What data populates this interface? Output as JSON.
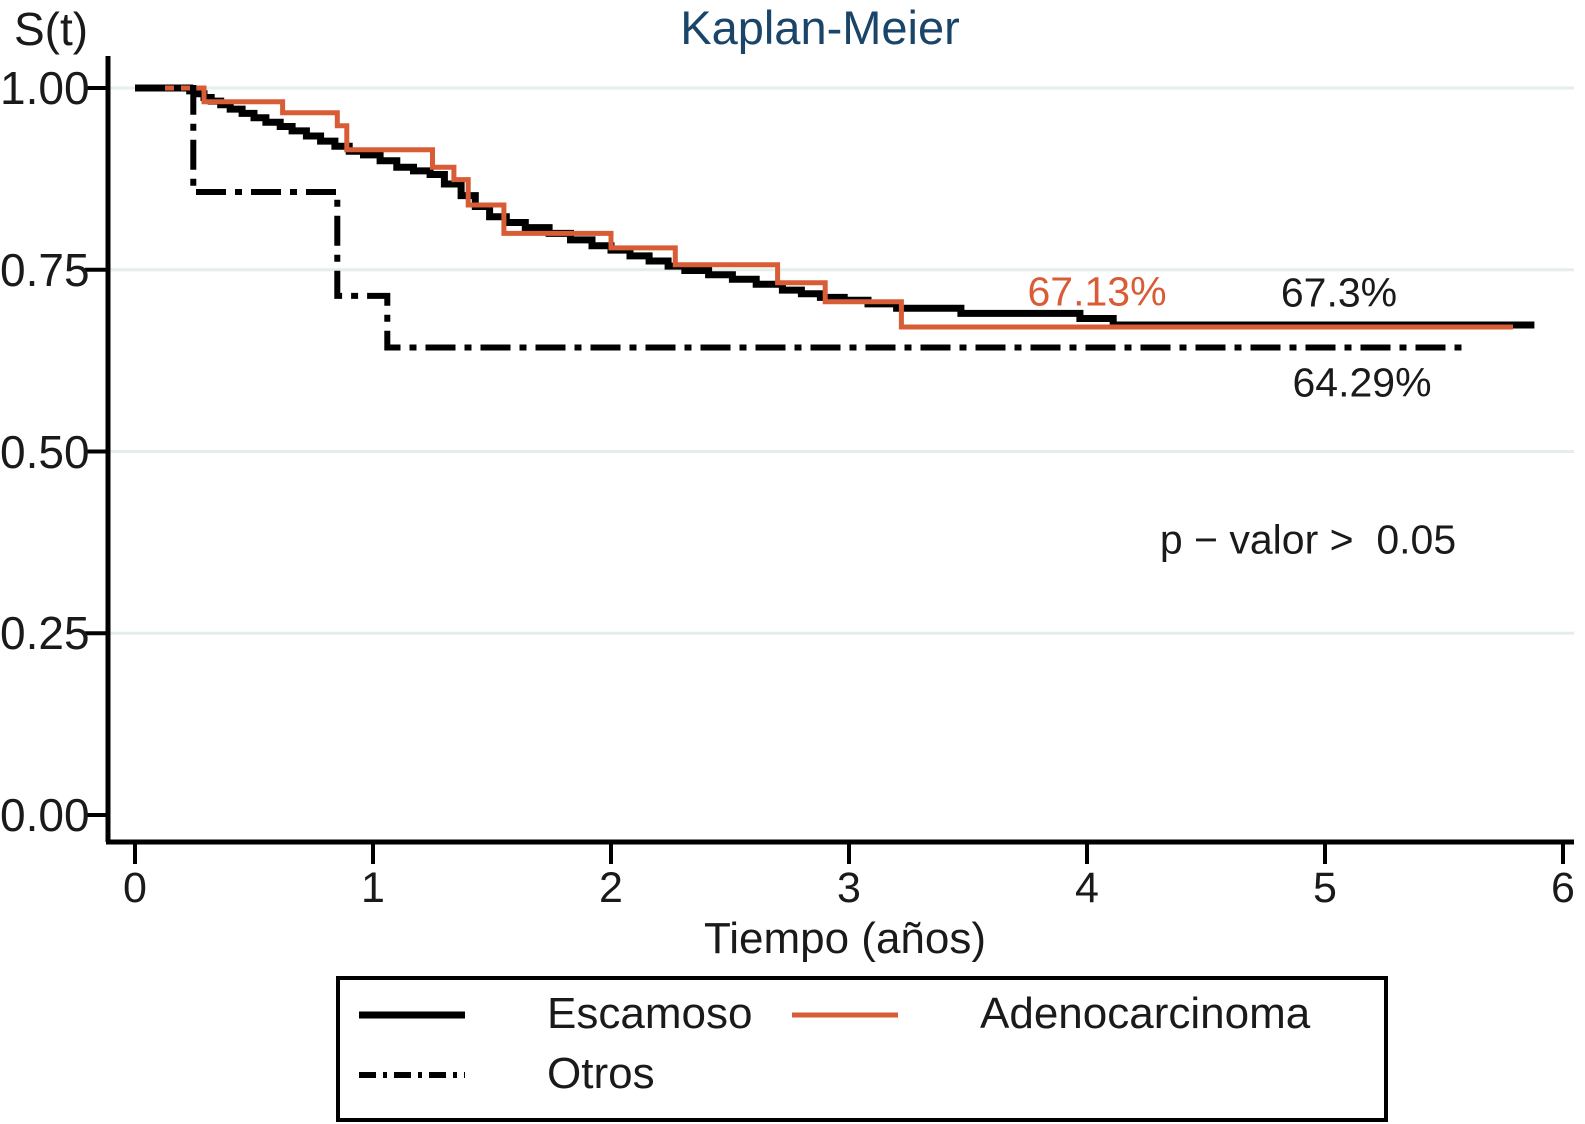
{
  "chart_data": {
    "type": "line",
    "step": true,
    "title": "Kaplan-Meier",
    "title_color": "#1A4569",
    "grid": true,
    "legend_position": "bottom",
    "x_axis": {
      "label": "Tiempo (años)",
      "range": [
        0,
        6
      ],
      "ticks": [
        {
          "v": 0,
          "label": "0"
        },
        {
          "v": 1,
          "label": "1"
        },
        {
          "v": 2,
          "label": "2"
        },
        {
          "v": 3,
          "label": "3"
        },
        {
          "v": 4,
          "label": "4"
        },
        {
          "v": 5,
          "label": "5"
        },
        {
          "v": 6,
          "label": "6"
        }
      ]
    },
    "y_axis": {
      "label": "S(t)",
      "range": [
        0,
        1
      ],
      "ticks": [
        {
          "v": 1.0,
          "label": "1.00"
        },
        {
          "v": 0.75,
          "label": "0.75"
        },
        {
          "v": 0.5,
          "label": "0.50"
        },
        {
          "v": 0.25,
          "label": "0.25"
        },
        {
          "v": 0.0,
          "label": "0.00"
        }
      ],
      "grid_values": [
        1.0,
        0.75,
        0.5,
        0.25
      ]
    },
    "series": [
      {
        "name": "Escamoso",
        "color": "#000000",
        "line_style": "solid",
        "width": 7,
        "dash": null,
        "points": [
          [
            0.0,
            1.0
          ],
          [
            0.23,
            0.996
          ],
          [
            0.26,
            0.992
          ],
          [
            0.29,
            0.987
          ],
          [
            0.32,
            0.982
          ],
          [
            0.36,
            0.977
          ],
          [
            0.4,
            0.971
          ],
          [
            0.45,
            0.965
          ],
          [
            0.5,
            0.959
          ],
          [
            0.55,
            0.953
          ],
          [
            0.61,
            0.947
          ],
          [
            0.66,
            0.941
          ],
          [
            0.72,
            0.934
          ],
          [
            0.78,
            0.927
          ],
          [
            0.84,
            0.92
          ],
          [
            0.9,
            0.913
          ],
          [
            0.96,
            0.908
          ],
          [
            1.03,
            0.9
          ],
          [
            1.1,
            0.891
          ],
          [
            1.17,
            0.886
          ],
          [
            1.24,
            0.881
          ],
          [
            1.3,
            0.868
          ],
          [
            1.37,
            0.852
          ],
          [
            1.43,
            0.837
          ],
          [
            1.49,
            0.823
          ],
          [
            1.56,
            0.815
          ],
          [
            1.64,
            0.808
          ],
          [
            1.74,
            0.8
          ],
          [
            1.83,
            0.791
          ],
          [
            1.92,
            0.783
          ],
          [
            2.0,
            0.777
          ],
          [
            2.08,
            0.769
          ],
          [
            2.16,
            0.762
          ],
          [
            2.24,
            0.755
          ],
          [
            2.31,
            0.749
          ],
          [
            2.41,
            0.743
          ],
          [
            2.51,
            0.737
          ],
          [
            2.61,
            0.73
          ],
          [
            2.72,
            0.722
          ],
          [
            2.8,
            0.717
          ],
          [
            2.88,
            0.712
          ],
          [
            2.98,
            0.708
          ],
          [
            3.08,
            0.703
          ],
          [
            3.2,
            0.697
          ],
          [
            3.47,
            0.69
          ],
          [
            3.97,
            0.683
          ],
          [
            4.11,
            0.674
          ],
          [
            5.88,
            0.674
          ]
        ]
      },
      {
        "name": "Adenocarcinoma",
        "color": "#D85C35",
        "line_style": "solid",
        "width": 5,
        "dash": null,
        "points": [
          [
            0.0,
            1.0
          ],
          [
            0.29,
            0.981
          ],
          [
            0.62,
            0.966
          ],
          [
            0.85,
            0.948
          ],
          [
            0.89,
            0.915
          ],
          [
            1.25,
            0.891
          ],
          [
            1.34,
            0.874
          ],
          [
            1.4,
            0.839
          ],
          [
            1.55,
            0.8
          ],
          [
            2.0,
            0.78
          ],
          [
            2.27,
            0.757
          ],
          [
            2.7,
            0.732
          ],
          [
            2.9,
            0.706
          ],
          [
            3.22,
            0.6713
          ],
          [
            5.79,
            0.6713
          ]
        ]
      },
      {
        "name": "Otros",
        "color": "#000000",
        "line_style": "dashdot",
        "width": 6,
        "dash": "30 9 7 9",
        "legend_dash": "17 7 4 7",
        "points": [
          [
            0.0,
            1.0
          ],
          [
            0.245,
            0.857
          ],
          [
            0.85,
            0.714
          ],
          [
            1.06,
            0.643
          ],
          [
            5.61,
            0.643
          ]
        ]
      }
    ],
    "annotations": {
      "adenocarcinoma_pct": "67.13%",
      "escamoso_pct": "67.3%",
      "otros_pct": "64.29%",
      "p_value": "p − valor >  0.05"
    }
  },
  "colors": {
    "background": "#ffffff",
    "axis": "#000000",
    "gridline": "#E6EEEA",
    "title": "#1A4569",
    "orange": "#D85C35",
    "text": "#1a1a1a"
  }
}
